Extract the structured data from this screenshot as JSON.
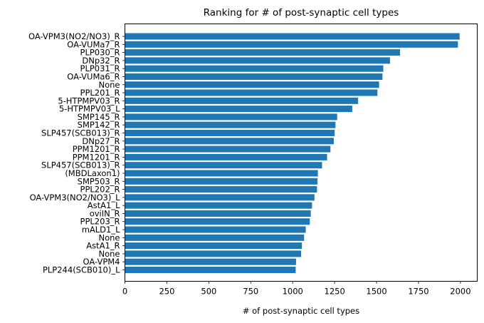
{
  "chart_data": {
    "type": "bar",
    "orientation": "horizontal",
    "title": "Ranking for # of post-synaptic cell types",
    "xlabel": "# of post-synaptic cell types",
    "ylabel": "",
    "xlim": [
      0,
      2100
    ],
    "xticks": [
      0,
      250,
      500,
      750,
      1000,
      1250,
      1500,
      1750,
      2000
    ],
    "xtick_labels": [
      "0",
      "250",
      "500",
      "750",
      "1000",
      "1250",
      "1500",
      "1750",
      "2000"
    ],
    "grid": false,
    "bar_color": "#1f77b4",
    "categories": [
      "OA-VPM3(NO2/NO3)_R",
      "OA-VUMa7_R",
      "PLP030_R",
      "DNp32_R",
      "PLP031_R",
      "OA-VUMa6_R",
      "None",
      "PPL201_R",
      "5-HTPMPV03_R",
      "5-HTPMPV03_L",
      "SMP145_R",
      "SMP142_R",
      "SLP457(SCB013)_R",
      "DNp27_R",
      "PPM1201_R",
      "PPM1201_R",
      "SLP457(SCB013)_R",
      "(MBDLaxon1)",
      "SMP503_R",
      "PPL202_R",
      "OA-VPM3(NO2/NO3)_L",
      "AstA1_L",
      "oviIN_R",
      "PPL203_R",
      "mALD1_L",
      "None",
      "AstA1_R",
      "None",
      "OA-VPM4",
      "PLP244(SCB010)_L"
    ],
    "values": [
      1995,
      1985,
      1640,
      1580,
      1540,
      1535,
      1515,
      1505,
      1390,
      1355,
      1265,
      1255,
      1250,
      1245,
      1225,
      1205,
      1175,
      1150,
      1148,
      1145,
      1130,
      1115,
      1108,
      1102,
      1078,
      1068,
      1055,
      1050,
      1020,
      1018
    ]
  }
}
